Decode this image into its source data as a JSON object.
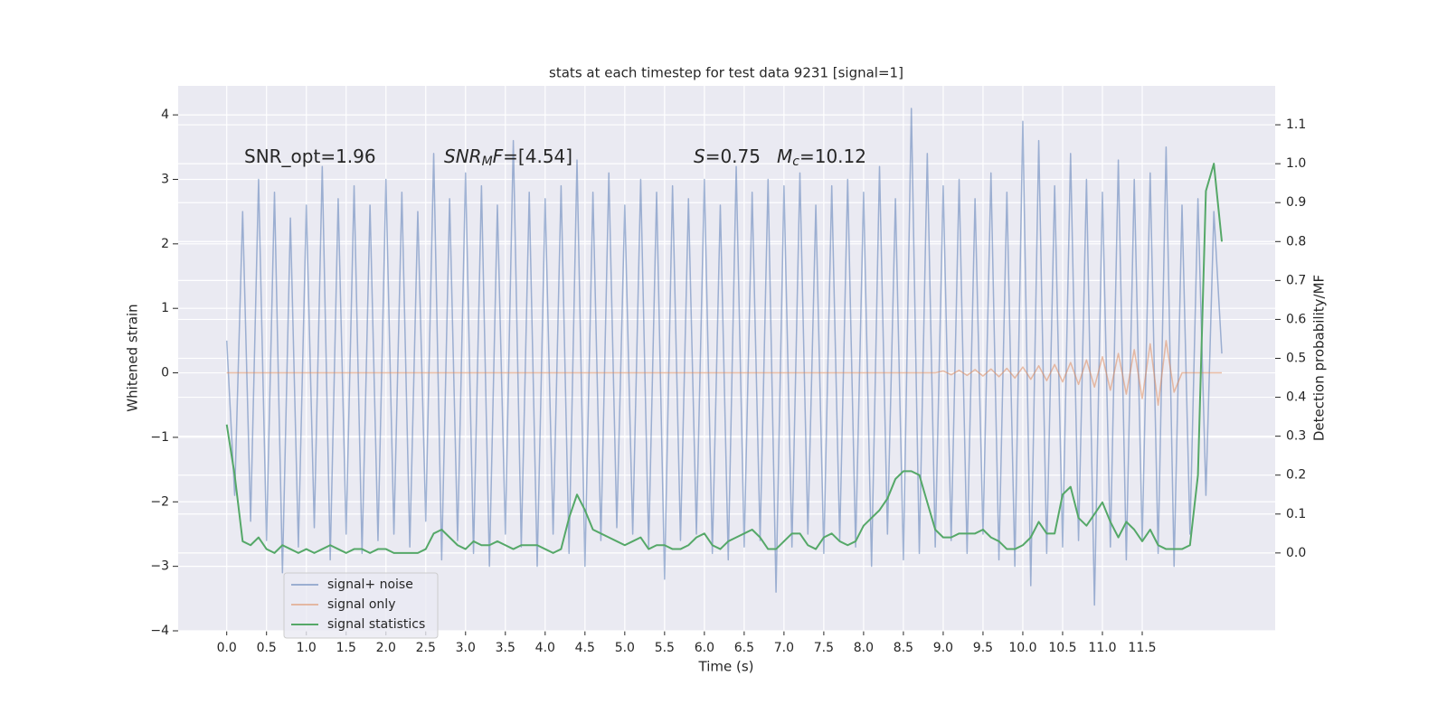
{
  "chart_data": {
    "type": "line",
    "title": "stats at each timestep for test data 9231 [signal=1]",
    "xlabel": "Time (s)",
    "ylabel": "Whitened strain",
    "y2label": "Detection probability/MF",
    "annotations": [
      [
        {
          "text": "SNR_opt=1.96"
        }
      ],
      [
        {
          "text": "SNR",
          "italic": true
        },
        {
          "text": "M",
          "italic": true,
          "sub": true
        },
        {
          "text": "F",
          "italic": true
        },
        {
          "text": "=[4.54]"
        }
      ],
      [
        {
          "text": "S",
          "italic": true
        },
        {
          "text": "=0.75"
        }
      ],
      [
        {
          "text": "M",
          "italic": true
        },
        {
          "text": "c",
          "italic": true,
          "sub": true
        },
        {
          "text": "=10.12"
        }
      ]
    ],
    "x": [
      0,
      0.1,
      0.2,
      0.3,
      0.4,
      0.5,
      0.6,
      0.7,
      0.8,
      0.9,
      1,
      1.1,
      1.2,
      1.3,
      1.4,
      1.5,
      1.6,
      1.7,
      1.8,
      1.9,
      2,
      2.1,
      2.2,
      2.3,
      2.4,
      2.5,
      2.6,
      2.7,
      2.8,
      2.9,
      3,
      3.1,
      3.2,
      3.3,
      3.4,
      3.5,
      3.6,
      3.7,
      3.8,
      3.9,
      4,
      4.1,
      4.2,
      4.3,
      4.4,
      4.5,
      4.6,
      4.7,
      4.8,
      4.9,
      5,
      5.1,
      5.2,
      5.3,
      5.4,
      5.5,
      5.6,
      5.7,
      5.8,
      5.9,
      6,
      6.1,
      6.2,
      6.3,
      6.4,
      6.5,
      6.6,
      6.7,
      6.8,
      6.9,
      7,
      7.1,
      7.2,
      7.3,
      7.4,
      7.5,
      7.6,
      7.7,
      7.8,
      7.9,
      8,
      8.1,
      8.2,
      8.3,
      8.4,
      8.5,
      8.6,
      8.7,
      8.8,
      8.9,
      9,
      9.1,
      9.2,
      9.3,
      9.4,
      9.5,
      9.6,
      9.7,
      9.8,
      9.9,
      10,
      10.1,
      10.2,
      10.3,
      10.4,
      10.5,
      10.6,
      10.7,
      10.8,
      10.9,
      11,
      11.1,
      11.2,
      11.3,
      11.4,
      11.5,
      11.6,
      11.7,
      11.8,
      11.9,
      12,
      12.1,
      12.2,
      12.3,
      12.4,
      12.5
    ],
    "series": [
      {
        "name": "signal+ noise",
        "color": "#4c72b0",
        "alpha": 0.5,
        "values": [
          0.5,
          -1.9,
          2.5,
          -2.3,
          3.0,
          -2.6,
          2.8,
          -3.1,
          2.4,
          -2.7,
          2.6,
          -2.4,
          3.2,
          -2.9,
          2.7,
          -2.5,
          2.9,
          -2.8,
          2.6,
          -2.6,
          3.0,
          -2.5,
          2.8,
          -2.7,
          2.5,
          -2.3,
          3.4,
          -2.9,
          2.7,
          -2.6,
          3.1,
          -2.8,
          2.9,
          -3.0,
          2.6,
          -2.5,
          3.6,
          -2.7,
          2.8,
          -3.0,
          2.7,
          -2.5,
          2.9,
          -2.8,
          3.3,
          -3.0,
          2.8,
          -2.6,
          3.1,
          -2.4,
          2.6,
          -2.5,
          3.0,
          -2.7,
          2.8,
          -3.2,
          2.9,
          -2.6,
          2.7,
          -2.5,
          3.0,
          -2.8,
          2.6,
          -2.9,
          3.2,
          -2.7,
          2.8,
          -2.6,
          3.0,
          -3.4,
          2.9,
          -2.7,
          3.1,
          -2.5,
          2.6,
          -2.8,
          2.9,
          -2.6,
          3.0,
          -2.7,
          2.8,
          -3.0,
          3.2,
          -2.5,
          2.7,
          -2.9,
          4.1,
          -2.8,
          3.4,
          -2.7,
          2.9,
          -2.6,
          3.0,
          -2.8,
          2.7,
          -2.5,
          3.1,
          -2.9,
          2.8,
          -3.0,
          3.9,
          -3.3,
          3.6,
          -2.8,
          2.9,
          -2.7,
          3.4,
          -2.6,
          3.0,
          -3.6,
          2.8,
          -2.7,
          3.3,
          -2.9,
          3.0,
          -2.6,
          3.1,
          -2.8,
          3.5,
          -3.0,
          2.6,
          -2.5,
          2.7,
          -1.9,
          2.5,
          0.3
        ]
      },
      {
        "name": "signal only",
        "color": "#dd8452",
        "alpha": 0.5,
        "values": [
          0,
          0,
          0,
          0,
          0,
          0,
          0,
          0,
          0,
          0,
          0,
          0,
          0,
          0,
          0,
          0,
          0,
          0,
          0,
          0,
          0,
          0,
          0,
          0,
          0,
          0,
          0,
          0,
          0,
          0,
          0,
          0,
          0,
          0,
          0,
          0,
          0,
          0,
          0,
          0,
          0,
          0,
          0,
          0,
          0,
          0,
          0,
          0,
          0,
          0,
          0,
          0,
          0,
          0,
          0,
          0,
          0,
          0,
          0,
          0,
          0,
          0,
          0,
          0,
          0,
          0,
          0,
          0,
          0,
          0,
          0,
          0,
          0,
          0,
          0,
          0,
          0,
          0,
          0,
          0,
          0,
          0,
          0,
          0,
          0,
          0,
          0,
          0,
          0,
          0,
          0.03,
          -0.03,
          0.04,
          -0.04,
          0.05,
          -0.05,
          0.06,
          -0.06,
          0.07,
          -0.08,
          0.09,
          -0.1,
          0.11,
          -0.12,
          0.13,
          -0.14,
          0.16,
          -0.18,
          0.2,
          -0.22,
          0.25,
          -0.27,
          0.3,
          -0.33,
          0.36,
          -0.4,
          0.45,
          -0.5,
          0.5,
          -0.3,
          0,
          0,
          0,
          0,
          0,
          0
        ]
      },
      {
        "name": "signal statistics",
        "color": "#55a868",
        "alpha": 1,
        "axis": "y2",
        "values": [
          0.33,
          0.2,
          0.03,
          0.02,
          0.04,
          0.01,
          0,
          0.02,
          0.01,
          0,
          0.01,
          0,
          0.01,
          0.02,
          0.01,
          0,
          0.01,
          0.01,
          0,
          0.01,
          0.01,
          0,
          0,
          0,
          0,
          0.01,
          0.05,
          0.06,
          0.04,
          0.02,
          0.01,
          0.03,
          0.02,
          0.02,
          0.03,
          0.02,
          0.01,
          0.02,
          0.02,
          0.02,
          0.01,
          0,
          0.01,
          0.09,
          0.15,
          0.11,
          0.06,
          0.05,
          0.04,
          0.03,
          0.02,
          0.03,
          0.04,
          0.01,
          0.02,
          0.02,
          0.01,
          0.01,
          0.02,
          0.04,
          0.05,
          0.02,
          0.01,
          0.03,
          0.04,
          0.05,
          0.06,
          0.04,
          0.01,
          0.01,
          0.03,
          0.05,
          0.05,
          0.02,
          0.01,
          0.04,
          0.05,
          0.03,
          0.02,
          0.03,
          0.07,
          0.09,
          0.11,
          0.14,
          0.19,
          0.21,
          0.21,
          0.2,
          0.13,
          0.06,
          0.04,
          0.04,
          0.05,
          0.05,
          0.05,
          0.06,
          0.04,
          0.03,
          0.01,
          0.01,
          0.02,
          0.04,
          0.08,
          0.05,
          0.05,
          0.15,
          0.17,
          0.09,
          0.07,
          0.1,
          0.13,
          0.08,
          0.04,
          0.08,
          0.06,
          0.03,
          0.06,
          0.02,
          0.01,
          0.01,
          0.01,
          0.02,
          0.2,
          0.93,
          1.0,
          0.8
        ]
      }
    ],
    "xlim": [
      -0.61,
      13.17
    ],
    "xticks": [
      {
        "value": 0,
        "label": "0.0"
      },
      0.5,
      {
        "value": 1,
        "label": "1.0"
      },
      1.5,
      {
        "value": 2,
        "label": "2.0"
      },
      2.5,
      {
        "value": 3,
        "label": "3.0"
      },
      3.5,
      {
        "value": 4,
        "label": "4.0"
      },
      4.5,
      {
        "value": 5,
        "label": "5.0"
      },
      5.5,
      {
        "value": 6,
        "label": "6.0"
      },
      6.5,
      {
        "value": 7,
        "label": "7.0"
      },
      7.5,
      {
        "value": 8,
        "label": "8.0"
      },
      8.5,
      {
        "value": 9,
        "label": "9.0"
      },
      9.5,
      {
        "value": 10,
        "label": "10.0"
      },
      10.5,
      {
        "value": 11,
        "label": "11.0"
      },
      11.5
    ],
    "ylim": [
      -4,
      4.45
    ],
    "yticks": [
      {
        "value": -4,
        "label": "−4"
      },
      {
        "value": -3,
        "label": "−3"
      },
      {
        "value": -2,
        "label": "−2"
      },
      {
        "value": -1,
        "label": "−1"
      },
      0,
      1,
      2,
      3,
      4
    ],
    "y2lim": [
      -0.2,
      1.2
    ],
    "y2ticks": [
      {
        "value": 0,
        "label": "0.0"
      },
      0.1,
      0.2,
      0.3,
      0.4,
      0.5,
      0.6,
      0.7,
      0.8,
      0.9,
      {
        "value": 1,
        "label": "1.0"
      },
      1.1
    ],
    "grid": true,
    "legend": "lower left",
    "background": "#eaeaf2"
  }
}
